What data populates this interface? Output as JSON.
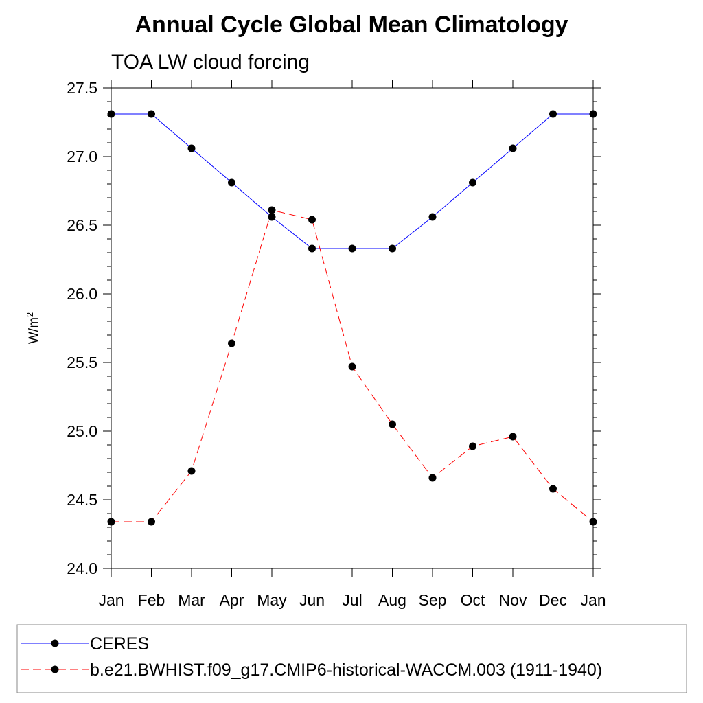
{
  "chart_data": {
    "type": "line",
    "title": "Annual Cycle Global Mean Climatology",
    "subtitle": "TOA LW cloud forcing",
    "ylabel": "W/m",
    "ylabel_superscript": "2",
    "xlabel": "",
    "ylim": [
      24.0,
      27.5
    ],
    "yticks": [
      "24.0",
      "24.5",
      "25.0",
      "25.5",
      "26.0",
      "26.5",
      "27.0",
      "27.5"
    ],
    "categories": [
      "Jan",
      "Feb",
      "Mar",
      "Apr",
      "May",
      "Jun",
      "Jul",
      "Aug",
      "Sep",
      "Oct",
      "Nov",
      "Dec",
      "Jan"
    ],
    "series": [
      {
        "name": "CERES",
        "color": "#0000ff",
        "dashed": false,
        "values": [
          27.31,
          27.31,
          27.06,
          26.81,
          26.56,
          26.33,
          26.33,
          26.33,
          26.56,
          26.81,
          27.06,
          27.31,
          27.31
        ]
      },
      {
        "name": "b.e21.BWHIST.f09_g17.CMIP6-historical-WACCM.003 (1911-1940)",
        "color": "#ff0000",
        "dashed": true,
        "values": [
          24.34,
          24.34,
          24.71,
          25.64,
          26.61,
          26.54,
          25.47,
          25.05,
          24.66,
          24.89,
          24.96,
          24.58,
          24.34
        ]
      }
    ],
    "legend_position": "bottom"
  }
}
